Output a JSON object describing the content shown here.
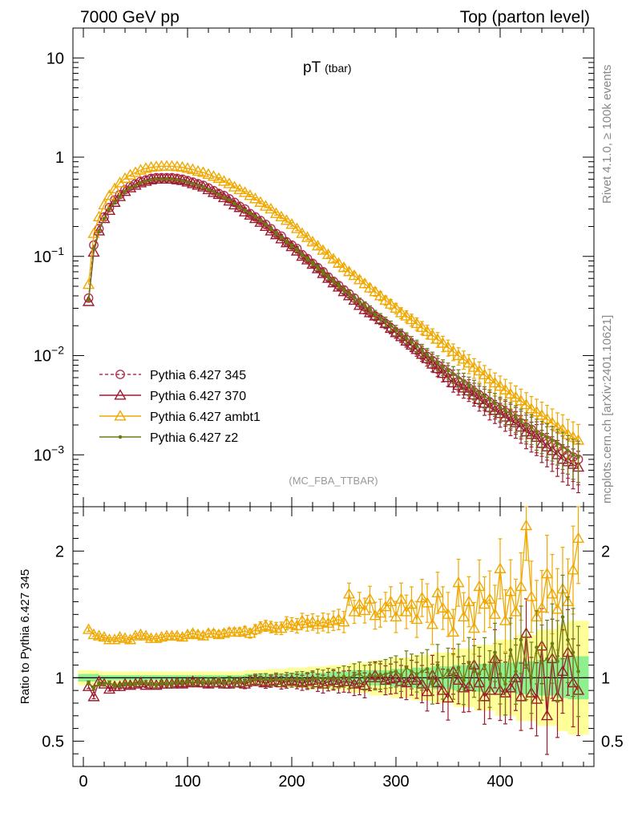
{
  "header": {
    "left": "7000 GeV pp",
    "right": "Top (parton level)"
  },
  "side": {
    "rivet": "Rivet 4.1.0, ≥ 100k events",
    "mcplots": "mcplots.cern.ch [arXiv:2401.10621]"
  },
  "colors": {
    "p345": "#b23252",
    "p370": "#9c1a2e",
    "ambt1": "#f0a800",
    "z2": "#6f7b12",
    "band_green": "#90f090",
    "band_yellow": "#ffff99"
  },
  "chart_data": [
    {
      "type": "line",
      "title": "pT",
      "title_sub": "(tbar)",
      "watermark": "(MC_FBA_TTBAR)",
      "xlabel": "",
      "ylabel": "",
      "yscale": "log",
      "xlim": [
        -10,
        490
      ],
      "ylim": [
        0.0003,
        20
      ],
      "x_ticks": [
        0,
        100,
        200,
        300,
        400
      ],
      "y_ticks": [
        {
          "value": 10,
          "base": "10",
          "exp": ""
        },
        {
          "value": 1,
          "base": "1",
          "exp": ""
        },
        {
          "value": 0.1,
          "base": "10",
          "exp": "−1"
        },
        {
          "value": 0.01,
          "base": "10",
          "exp": "−2"
        },
        {
          "value": 0.001,
          "base": "10",
          "exp": "−3"
        }
      ],
      "legend": [
        {
          "name": "Pythia 6.427 345",
          "key": "p345"
        },
        {
          "name": "Pythia 6.427 370",
          "key": "p370"
        },
        {
          "name": "Pythia 6.427 ambt1",
          "key": "ambt1"
        },
        {
          "name": "Pythia 6.427 z2",
          "key": "z2"
        }
      ],
      "x": [
        5,
        10,
        15,
        20,
        25,
        30,
        35,
        40,
        45,
        50,
        55,
        60,
        65,
        70,
        75,
        80,
        85,
        90,
        95,
        100,
        105,
        110,
        115,
        120,
        125,
        130,
        135,
        140,
        145,
        150,
        155,
        160,
        165,
        170,
        175,
        180,
        185,
        190,
        195,
        200,
        205,
        210,
        215,
        220,
        225,
        230,
        235,
        240,
        245,
        250,
        255,
        260,
        265,
        270,
        275,
        280,
        285,
        290,
        295,
        300,
        305,
        310,
        315,
        320,
        325,
        330,
        335,
        340,
        345,
        350,
        355,
        360,
        365,
        370,
        375,
        380,
        385,
        390,
        395,
        400,
        405,
        410,
        415,
        420,
        425,
        430,
        435,
        440,
        445,
        450,
        455,
        460,
        465,
        470,
        475
      ],
      "series": [
        {
          "name": "Pythia 6.427 345",
          "key": "p345",
          "marker": "circle",
          "dashed": true,
          "values": [
            0.038,
            0.13,
            0.19,
            0.25,
            0.31,
            0.37,
            0.42,
            0.47,
            0.51,
            0.54,
            0.57,
            0.59,
            0.61,
            0.62,
            0.62,
            0.62,
            0.62,
            0.61,
            0.6,
            0.58,
            0.56,
            0.54,
            0.52,
            0.49,
            0.46,
            0.43,
            0.41,
            0.38,
            0.35,
            0.32,
            0.3,
            0.27,
            0.25,
            0.23,
            0.21,
            0.19,
            0.17,
            0.16,
            0.14,
            0.13,
            0.12,
            0.104,
            0.095,
            0.085,
            0.077,
            0.07,
            0.062,
            0.056,
            0.051,
            0.046,
            0.042,
            0.038,
            0.034,
            0.031,
            0.028,
            0.025,
            0.023,
            0.021,
            0.019,
            0.017,
            0.016,
            0.0145,
            0.013,
            0.012,
            0.0108,
            0.0098,
            0.0089,
            0.008,
            0.0073,
            0.0067,
            0.006,
            0.0055,
            0.0051,
            0.0047,
            0.0043,
            0.004,
            0.0037,
            0.0034,
            0.0031,
            0.0029,
            0.0027,
            0.0025,
            0.0023,
            0.0021,
            0.0019,
            0.0018,
            0.0016,
            0.0015,
            0.0014,
            0.0013,
            0.0012,
            0.0011,
            0.001,
            0.00095,
            0.0009
          ]
        },
        {
          "name": "Pythia 6.427 370",
          "key": "p370",
          "marker": "triangle",
          "dashed": false,
          "values": [
            0.035,
            0.11,
            0.18,
            0.24,
            0.29,
            0.35,
            0.4,
            0.45,
            0.49,
            0.52,
            0.55,
            0.57,
            0.59,
            0.6,
            0.6,
            0.6,
            0.6,
            0.59,
            0.58,
            0.56,
            0.54,
            0.52,
            0.5,
            0.47,
            0.44,
            0.42,
            0.39,
            0.36,
            0.33,
            0.31,
            0.28,
            0.26,
            0.24,
            0.22,
            0.2,
            0.18,
            0.165,
            0.15,
            0.137,
            0.125,
            0.113,
            0.1,
            0.092,
            0.083,
            0.075,
            0.067,
            0.06,
            0.054,
            0.049,
            0.044,
            0.04,
            0.036,
            0.032,
            0.029,
            0.027,
            0.025,
            0.023,
            0.021,
            0.0188,
            0.017,
            0.0155,
            0.014,
            0.0127,
            0.0115,
            0.0103,
            0.0093,
            0.0082,
            0.0074,
            0.0066,
            0.006,
            0.0053,
            0.005,
            0.0047,
            0.0044,
            0.004,
            0.0036,
            0.0033,
            0.003,
            0.0028,
            0.0026,
            0.0024,
            0.0022,
            0.0021,
            0.0019,
            0.0017,
            0.0016,
            0.0015,
            0.0013,
            0.0012,
            0.0011,
            0.001,
            0.0009,
            0.00085,
            0.0008,
            0.00075
          ]
        },
        {
          "name": "Pythia 6.427 ambt1",
          "key": "ambt1",
          "marker": "triangle",
          "dashed": false,
          "values": [
            0.052,
            0.17,
            0.25,
            0.33,
            0.41,
            0.48,
            0.55,
            0.61,
            0.66,
            0.7,
            0.74,
            0.77,
            0.79,
            0.8,
            0.81,
            0.81,
            0.81,
            0.8,
            0.79,
            0.77,
            0.75,
            0.72,
            0.7,
            0.67,
            0.64,
            0.61,
            0.57,
            0.54,
            0.5,
            0.47,
            0.44,
            0.41,
            0.38,
            0.35,
            0.32,
            0.3,
            0.27,
            0.25,
            0.23,
            0.21,
            0.19,
            0.17,
            0.155,
            0.14,
            0.127,
            0.115,
            0.104,
            0.094,
            0.085,
            0.077,
            0.07,
            0.064,
            0.058,
            0.053,
            0.048,
            0.044,
            0.04,
            0.036,
            0.033,
            0.03,
            0.027,
            0.025,
            0.023,
            0.021,
            0.0192,
            0.0175,
            0.016,
            0.0146,
            0.0133,
            0.0121,
            0.011,
            0.01,
            0.0092,
            0.0084,
            0.0076,
            0.007,
            0.0064,
            0.0058,
            0.0053,
            0.0049,
            0.0045,
            0.0041,
            0.0038,
            0.0035,
            0.0032,
            0.0029,
            0.0027,
            0.0025,
            0.0023,
            0.0021,
            0.0019,
            0.0018,
            0.0016,
            0.0015,
            0.0014
          ]
        },
        {
          "name": "Pythia 6.427 z2",
          "key": "z2",
          "marker": "dot",
          "dashed": false,
          "values": [
            0.036,
            0.12,
            0.18,
            0.24,
            0.3,
            0.35,
            0.4,
            0.45,
            0.49,
            0.52,
            0.55,
            0.57,
            0.59,
            0.6,
            0.6,
            0.6,
            0.6,
            0.59,
            0.58,
            0.56,
            0.54,
            0.52,
            0.5,
            0.47,
            0.45,
            0.42,
            0.39,
            0.37,
            0.34,
            0.31,
            0.29,
            0.27,
            0.25,
            0.23,
            0.21,
            0.19,
            0.17,
            0.155,
            0.14,
            0.128,
            0.116,
            0.104,
            0.094,
            0.085,
            0.077,
            0.069,
            0.062,
            0.056,
            0.051,
            0.046,
            0.042,
            0.038,
            0.035,
            0.032,
            0.029,
            0.026,
            0.024,
            0.022,
            0.02,
            0.018,
            0.0165,
            0.015,
            0.0137,
            0.0125,
            0.0113,
            0.0102,
            0.0093,
            0.0085,
            0.0077,
            0.0071,
            0.0065,
            0.006,
            0.0055,
            0.005,
            0.0046,
            0.0042,
            0.0039,
            0.0036,
            0.0033,
            0.003,
            0.0028,
            0.0026,
            0.0024,
            0.0022,
            0.002,
            0.0019,
            0.0017,
            0.0016,
            0.0015,
            0.0014,
            0.0013,
            0.0012,
            0.0011,
            0.001,
            0.00095
          ]
        }
      ]
    },
    {
      "type": "line",
      "title": "",
      "xlabel": "",
      "ylabel": "Ratio to Pythia 6.427 345",
      "xlim": [
        -10,
        490
      ],
      "ylim": [
        0.3,
        2.35
      ],
      "x_ticks": [
        0,
        100,
        200,
        300,
        400
      ],
      "y_ticks": [
        0.5,
        1,
        2
      ],
      "reference": 1,
      "bands": {
        "x": [
          5,
          25,
          45,
          65,
          85,
          105,
          125,
          145,
          165,
          185,
          205,
          225,
          245,
          265,
          285,
          305,
          325,
          345,
          365,
          385,
          405,
          425,
          445,
          465,
          475
        ],
        "inner_halfwidth": [
          0.03,
          0.02,
          0.02,
          0.02,
          0.02,
          0.02,
          0.02,
          0.02,
          0.03,
          0.03,
          0.04,
          0.04,
          0.05,
          0.06,
          0.06,
          0.07,
          0.08,
          0.09,
          0.1,
          0.11,
          0.12,
          0.13,
          0.14,
          0.16,
          0.17
        ],
        "outer_halfwidth": [
          0.06,
          0.05,
          0.05,
          0.05,
          0.05,
          0.05,
          0.05,
          0.05,
          0.06,
          0.07,
          0.08,
          0.09,
          0.1,
          0.12,
          0.14,
          0.16,
          0.18,
          0.2,
          0.23,
          0.26,
          0.3,
          0.34,
          0.38,
          0.42,
          0.45
        ]
      },
      "series": [
        {
          "name": "Pythia 6.427 370",
          "key": "p370",
          "values": [
            0.93,
            0.85,
            0.97,
            0.95,
            0.91,
            0.93,
            0.93,
            0.95,
            0.94,
            0.95,
            0.96,
            0.94,
            0.95,
            0.94,
            0.95,
            0.95,
            0.95,
            0.96,
            0.95,
            0.96,
            0.97,
            0.96,
            0.96,
            0.95,
            0.96,
            0.96,
            0.95,
            0.95,
            0.96,
            0.96,
            0.95,
            0.97,
            0.98,
            0.97,
            0.96,
            0.97,
            0.98,
            0.96,
            0.97,
            0.98,
            0.97,
            0.96,
            0.97,
            0.98,
            0.96,
            0.95,
            0.97,
            0.98,
            0.96,
            0.97,
            0.97,
            0.95,
            0.96,
            0.94,
            1.0,
            1.02,
            1.0,
            0.98,
            0.99,
            1.0,
            0.97,
            0.96,
            1.0,
            0.98,
            0.95,
            0.89,
            1.02,
            0.96,
            0.9,
            0.84,
            1.05,
            0.98,
            0.92,
            0.93,
            1.1,
            0.96,
            0.85,
            0.9,
            1.15,
            0.9,
            0.88,
            0.92,
            1.0,
            0.85,
            1.35,
            0.88,
            0.83,
            1.25,
            0.7,
            1.15,
            0.85,
            1.05,
            1.2,
            0.96,
            0.9
          ]
        },
        {
          "name": "Pythia 6.427 ambt1",
          "key": "ambt1",
          "values": [
            1.38,
            1.34,
            1.33,
            1.32,
            1.3,
            1.3,
            1.32,
            1.31,
            1.3,
            1.33,
            1.34,
            1.33,
            1.31,
            1.31,
            1.32,
            1.33,
            1.33,
            1.33,
            1.32,
            1.34,
            1.35,
            1.34,
            1.33,
            1.35,
            1.35,
            1.34,
            1.35,
            1.36,
            1.36,
            1.36,
            1.37,
            1.35,
            1.38,
            1.4,
            1.41,
            1.4,
            1.39,
            1.39,
            1.43,
            1.42,
            1.41,
            1.45,
            1.43,
            1.44,
            1.42,
            1.44,
            1.43,
            1.45,
            1.46,
            1.44,
            1.66,
            1.52,
            1.58,
            1.53,
            1.62,
            1.49,
            1.51,
            1.56,
            1.6,
            1.48,
            1.62,
            1.52,
            1.58,
            1.46,
            1.63,
            1.59,
            1.42,
            1.67,
            1.55,
            1.5,
            1.36,
            1.75,
            1.48,
            1.6,
            1.39,
            1.72,
            1.58,
            1.62,
            1.5,
            1.86,
            1.45,
            1.68,
            1.52,
            1.72,
            2.2,
            1.64,
            1.48,
            1.55,
            1.82,
            1.66,
            1.54,
            1.7,
            1.6,
            1.85,
            2.1
          ]
        },
        {
          "name": "Pythia 6.427 z2",
          "key": "z2",
          "values": [
            0.96,
            0.92,
            0.95,
            0.95,
            0.96,
            0.94,
            0.94,
            0.95,
            0.95,
            0.95,
            0.96,
            0.96,
            0.95,
            0.94,
            0.96,
            0.95,
            0.95,
            0.97,
            0.96,
            0.97,
            0.96,
            0.97,
            0.96,
            0.97,
            0.96,
            0.97,
            0.96,
            0.98,
            0.96,
            0.97,
            0.97,
            0.98,
            0.99,
            0.99,
            0.99,
            0.98,
            0.99,
            0.98,
            0.99,
            0.98,
            0.99,
            0.99,
            0.98,
            0.99,
            1.0,
            0.99,
            1.0,
            0.99,
            1.0,
            1.01,
            1.0,
            1.02,
            1.03,
            1.0,
            1.02,
            1.01,
            1.02,
            1.03,
            1.04,
            1.05,
            1.02,
            1.08,
            1.05,
            1.03,
            1.05,
            1.07,
            0.95,
            1.1,
            1.0,
            1.06,
            1.01,
            1.08,
            0.98,
            1.12,
            1.05,
            1.03,
            1.1,
            0.99,
            1.2,
            1.03,
            0.95,
            1.22,
            1.05,
            1.3,
            1.1,
            1.0,
            1.24,
            1.12,
            1.15,
            1.27,
            1.13,
            1.48,
            1.3,
            1.2,
            1.05
          ]
        }
      ]
    }
  ]
}
